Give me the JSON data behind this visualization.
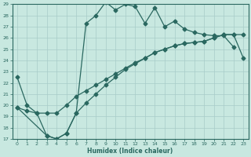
{
  "xlabel": "Humidex (Indice chaleur)",
  "bg_color": "#c8e8e0",
  "line_color": "#2a6860",
  "grid_color": "#a8ccc8",
  "xlim": [
    -0.5,
    23.5
  ],
  "ylim": [
    17,
    29
  ],
  "xticks": [
    0,
    1,
    2,
    3,
    4,
    5,
    6,
    7,
    8,
    9,
    10,
    11,
    12,
    13,
    14,
    15,
    16,
    17,
    18,
    19,
    20,
    21,
    22,
    23
  ],
  "yticks": [
    17,
    18,
    19,
    20,
    21,
    22,
    23,
    24,
    25,
    26,
    27,
    28,
    29
  ],
  "line1_x": [
    0,
    1,
    2,
    3,
    4,
    5,
    6,
    7,
    8,
    9,
    10,
    11,
    12,
    13,
    14,
    15,
    16,
    17,
    18,
    19,
    20,
    21,
    22
  ],
  "line1_y": [
    22.5,
    20.0,
    19.3,
    17.3,
    17.0,
    17.5,
    19.3,
    27.3,
    28.0,
    29.2,
    28.5,
    29.0,
    28.8,
    27.3,
    28.7,
    27.0,
    27.5,
    26.8,
    26.5,
    26.3,
    26.2,
    26.2,
    25.2
  ],
  "line2_x": [
    0,
    1,
    2,
    3,
    4,
    5,
    6,
    7,
    8,
    9,
    10,
    11,
    12,
    13,
    14,
    15,
    16,
    17,
    18,
    19,
    20,
    21,
    22,
    23
  ],
  "line2_y": [
    19.8,
    19.5,
    19.3,
    19.3,
    19.3,
    20.0,
    20.8,
    21.3,
    21.8,
    22.3,
    22.8,
    23.3,
    23.8,
    24.2,
    24.7,
    25.0,
    25.3,
    25.5,
    25.6,
    25.7,
    26.0,
    26.3,
    26.3,
    26.3
  ],
  "line3_x": [
    0,
    3,
    4,
    5,
    6,
    7,
    8,
    9,
    10,
    11,
    12,
    13,
    14,
    15,
    16,
    17,
    18,
    19,
    20,
    21,
    22,
    23
  ],
  "line3_y": [
    19.8,
    17.3,
    17.0,
    17.5,
    19.3,
    20.2,
    21.0,
    21.8,
    22.5,
    23.2,
    23.7,
    24.2,
    24.7,
    25.0,
    25.3,
    25.5,
    25.6,
    25.7,
    26.0,
    26.3,
    26.3,
    24.2
  ]
}
